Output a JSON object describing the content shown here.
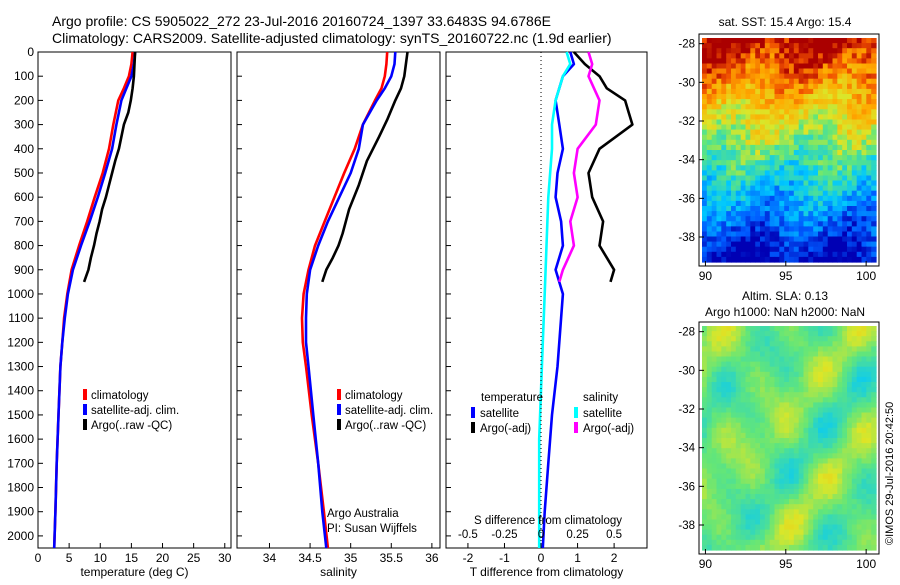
{
  "header": {
    "line1": "Argo profile: CS 5905022_272 23-Jul-2016 20160724_1397 33.6483S 94.6786E",
    "line2": "Climatology: CARS2009. Satellite-adjusted climatology: synTS_20160722.nc (1.9d earlier)"
  },
  "colors": {
    "climatology": "#ff0000",
    "satellite": "#0000ff",
    "argo": "#000000",
    "s_satellite": "#00ffff",
    "s_argo": "#ff00ff"
  },
  "chart_data": [
    {
      "type": "line",
      "xlabel": "temperature (deg C)",
      "xlim": [
        0,
        31
      ],
      "xticks": [
        "0",
        "5",
        "10",
        "15",
        "20",
        "25",
        "30"
      ],
      "ylim": [
        0,
        2050
      ],
      "yticks": [
        "0",
        "100",
        "200",
        "300",
        "400",
        "500",
        "600",
        "700",
        "800",
        "900",
        "1000",
        "1100",
        "1200",
        "1300",
        "1400",
        "1500",
        "1600",
        "1700",
        "1800",
        "1900",
        "2000"
      ],
      "legend": [
        "climatology",
        "satellite-adj. clim.",
        "Argo(..raw -QC)"
      ],
      "series": [
        {
          "name": "climatology",
          "color": "#ff0000",
          "points": [
            [
              15.2,
              0
            ],
            [
              15.0,
              50
            ],
            [
              14.6,
              100
            ],
            [
              13.8,
              150
            ],
            [
              12.9,
              200
            ],
            [
              12.1,
              300
            ],
            [
              11.4,
              400
            ],
            [
              10.4,
              500
            ],
            [
              9.1,
              600
            ],
            [
              7.9,
              700
            ],
            [
              6.6,
              800
            ],
            [
              5.4,
              900
            ],
            [
              4.7,
              1000
            ],
            [
              4.2,
              1100
            ],
            [
              3.9,
              1200
            ],
            [
              3.6,
              1300
            ],
            [
              3.3,
              1500
            ],
            [
              3.0,
              1700
            ],
            [
              2.8,
              1900
            ],
            [
              2.6,
              2050
            ]
          ]
        },
        {
          "name": "satellite-adj. clim.",
          "color": "#0000ff",
          "points": [
            [
              15.6,
              0
            ],
            [
              15.4,
              50
            ],
            [
              15.0,
              100
            ],
            [
              14.2,
              150
            ],
            [
              13.4,
              200
            ],
            [
              12.6,
              300
            ],
            [
              11.9,
              400
            ],
            [
              10.8,
              500
            ],
            [
              9.6,
              600
            ],
            [
              8.3,
              700
            ],
            [
              6.9,
              800
            ],
            [
              5.6,
              900
            ],
            [
              4.8,
              1000
            ],
            [
              4.3,
              1100
            ],
            [
              3.9,
              1200
            ],
            [
              3.6,
              1300
            ],
            [
              3.3,
              1500
            ],
            [
              3.0,
              1700
            ],
            [
              2.8,
              1900
            ],
            [
              2.6,
              2050
            ]
          ]
        },
        {
          "name": "Argo(..raw -QC)",
          "color": "#000000",
          "points": [
            [
              15.6,
              0
            ],
            [
              15.5,
              50
            ],
            [
              15.4,
              100
            ],
            [
              15.2,
              150
            ],
            [
              14.9,
              200
            ],
            [
              14.5,
              250
            ],
            [
              13.8,
              300
            ],
            [
              13.4,
              350
            ],
            [
              13.0,
              400
            ],
            [
              12.4,
              450
            ],
            [
              11.9,
              500
            ],
            [
              11.4,
              550
            ],
            [
              10.9,
              600
            ],
            [
              10.3,
              650
            ],
            [
              9.9,
              700
            ],
            [
              9.4,
              750
            ],
            [
              9.0,
              800
            ],
            [
              8.5,
              850
            ],
            [
              8.1,
              900
            ],
            [
              7.4,
              950
            ]
          ]
        }
      ]
    },
    {
      "type": "line",
      "xlabel": "salinity",
      "xlim": [
        33.6,
        36.1
      ],
      "xticks": [
        "34",
        "34.5",
        "35",
        "35.5",
        "36"
      ],
      "ylim": [
        0,
        2050
      ],
      "legend": [
        "climatology",
        "satellite-adj. clim.",
        "Argo(..raw -QC)"
      ],
      "annotation": [
        "Argo Australia",
        "PI: Susan Wijffels"
      ],
      "series": [
        {
          "name": "climatology",
          "color": "#ff0000",
          "points": [
            [
              35.45,
              0
            ],
            [
              35.44,
              50
            ],
            [
              35.42,
              100
            ],
            [
              35.38,
              150
            ],
            [
              35.3,
              200
            ],
            [
              35.15,
              300
            ],
            [
              35.05,
              400
            ],
            [
              34.92,
              500
            ],
            [
              34.8,
              600
            ],
            [
              34.68,
              700
            ],
            [
              34.56,
              800
            ],
            [
              34.48,
              900
            ],
            [
              34.42,
              1000
            ],
            [
              34.4,
              1100
            ],
            [
              34.41,
              1200
            ],
            [
              34.45,
              1300
            ],
            [
              34.52,
              1500
            ],
            [
              34.6,
              1700
            ],
            [
              34.67,
              1900
            ],
            [
              34.72,
              2050
            ]
          ]
        },
        {
          "name": "satellite-adj. clim.",
          "color": "#0000ff",
          "points": [
            [
              35.55,
              0
            ],
            [
              35.54,
              50
            ],
            [
              35.5,
              100
            ],
            [
              35.42,
              150
            ],
            [
              35.32,
              200
            ],
            [
              35.15,
              300
            ],
            [
              35.1,
              400
            ],
            [
              35.0,
              500
            ],
            [
              34.86,
              600
            ],
            [
              34.72,
              700
            ],
            [
              34.6,
              800
            ],
            [
              34.5,
              900
            ],
            [
              34.46,
              1000
            ],
            [
              34.45,
              1100
            ],
            [
              34.45,
              1200
            ],
            [
              34.48,
              1300
            ],
            [
              34.54,
              1500
            ],
            [
              34.6,
              1700
            ],
            [
              34.65,
              1900
            ],
            [
              34.7,
              2050
            ]
          ]
        },
        {
          "name": "Argo(..raw -QC)",
          "color": "#000000",
          "points": [
            [
              35.7,
              0
            ],
            [
              35.68,
              50
            ],
            [
              35.66,
              100
            ],
            [
              35.62,
              150
            ],
            [
              35.55,
              200
            ],
            [
              35.45,
              280
            ],
            [
              35.35,
              350
            ],
            [
              35.2,
              450
            ],
            [
              35.1,
              550
            ],
            [
              34.98,
              650
            ],
            [
              34.9,
              750
            ],
            [
              34.85,
              800
            ],
            [
              34.78,
              850
            ],
            [
              34.7,
              900
            ],
            [
              34.65,
              950
            ]
          ]
        }
      ]
    },
    {
      "type": "line",
      "xlabel": "T difference from climatology",
      "xlim": [
        -2.6,
        2.9
      ],
      "xticks": [
        "-2",
        "-1",
        "0",
        "1",
        "2"
      ],
      "x2label": "S difference from climatology",
      "x2ticks": [
        "-0.5",
        "-0.25",
        "0",
        "0.25",
        "0.5"
      ],
      "ylim": [
        0,
        2050
      ],
      "legend": {
        "temperature": [
          "satellite",
          "Argo(-adj)"
        ],
        "salinity": [
          "satellite",
          "Argo(-adj)"
        ]
      },
      "series": [
        {
          "name": "satellite",
          "group": "temperature",
          "color": "#0000ff",
          "points": [
            [
              0.8,
              0
            ],
            [
              0.9,
              50
            ],
            [
              0.6,
              100
            ],
            [
              0.4,
              200
            ],
            [
              0.5,
              300
            ],
            [
              0.6,
              400
            ],
            [
              0.45,
              500
            ],
            [
              0.4,
              600
            ],
            [
              0.55,
              700
            ],
            [
              0.6,
              800
            ],
            [
              0.4,
              900
            ],
            [
              0.6,
              1000
            ],
            [
              0.55,
              1100
            ],
            [
              0.45,
              1300
            ],
            [
              0.3,
              1500
            ],
            [
              0.2,
              1700
            ],
            [
              0.1,
              1900
            ],
            [
              0.05,
              2050
            ]
          ]
        },
        {
          "name": "Argo(-adj)",
          "group": "temperature",
          "color": "#000000",
          "points": [
            [
              0.9,
              0
            ],
            [
              1.2,
              50
            ],
            [
              1.6,
              100
            ],
            [
              1.8,
              150
            ],
            [
              2.3,
              200
            ],
            [
              2.4,
              250
            ],
            [
              2.5,
              300
            ],
            [
              1.6,
              400
            ],
            [
              1.3,
              500
            ],
            [
              1.4,
              600
            ],
            [
              1.7,
              700
            ],
            [
              1.6,
              800
            ],
            [
              1.8,
              850
            ],
            [
              2.0,
              900
            ],
            [
              1.9,
              950
            ]
          ]
        },
        {
          "name": "satellite",
          "group": "salinity",
          "color": "#00ffff",
          "points": [
            [
              0.7,
              0
            ],
            [
              0.8,
              50
            ],
            [
              0.6,
              100
            ],
            [
              0.4,
              200
            ],
            [
              0.3,
              300
            ],
            [
              0.3,
              400
            ],
            [
              0.2,
              600
            ],
            [
              0.15,
              800
            ],
            [
              0.1,
              1000
            ],
            [
              0.05,
              1200
            ],
            [
              0.0,
              1400
            ],
            [
              -0.05,
              1600
            ],
            [
              -0.05,
              1800
            ],
            [
              -0.05,
              2050
            ]
          ]
        },
        {
          "name": "Argo(-adj)",
          "group": "salinity",
          "color": "#ff00ff",
          "points": [
            [
              1.3,
              0
            ],
            [
              1.4,
              50
            ],
            [
              1.3,
              100
            ],
            [
              1.6,
              200
            ],
            [
              1.5,
              300
            ],
            [
              1.0,
              400
            ],
            [
              0.9,
              500
            ],
            [
              1.0,
              600
            ],
            [
              0.8,
              700
            ],
            [
              0.9,
              800
            ],
            [
              0.6,
              900
            ],
            [
              0.5,
              950
            ]
          ]
        }
      ]
    },
    {
      "type": "heatmap",
      "title": "sat. SST: 15.4 Argo: 15.4",
      "xticks": [
        "90",
        "95",
        "100"
      ],
      "yticks": [
        "-28",
        "-30",
        "-32",
        "-34",
        "-36",
        "-38"
      ],
      "xlim": [
        89.6,
        100.8
      ],
      "ylim": [
        -39.5,
        -27.5
      ]
    },
    {
      "type": "heatmap",
      "title": "Altim. SLA: 0.13",
      "subtitle": "Argo h1000: NaN h2000: NaN",
      "xticks": [
        "90",
        "95",
        "100"
      ],
      "yticks": [
        "-28",
        "-30",
        "-32",
        "-34",
        "-36",
        "-38"
      ],
      "xlim": [
        89.6,
        100.8
      ],
      "ylim": [
        -39.5,
        -27.5
      ]
    }
  ],
  "footer": {
    "watermark": "©IMOS 29-Jul-2016 20:42:50"
  }
}
